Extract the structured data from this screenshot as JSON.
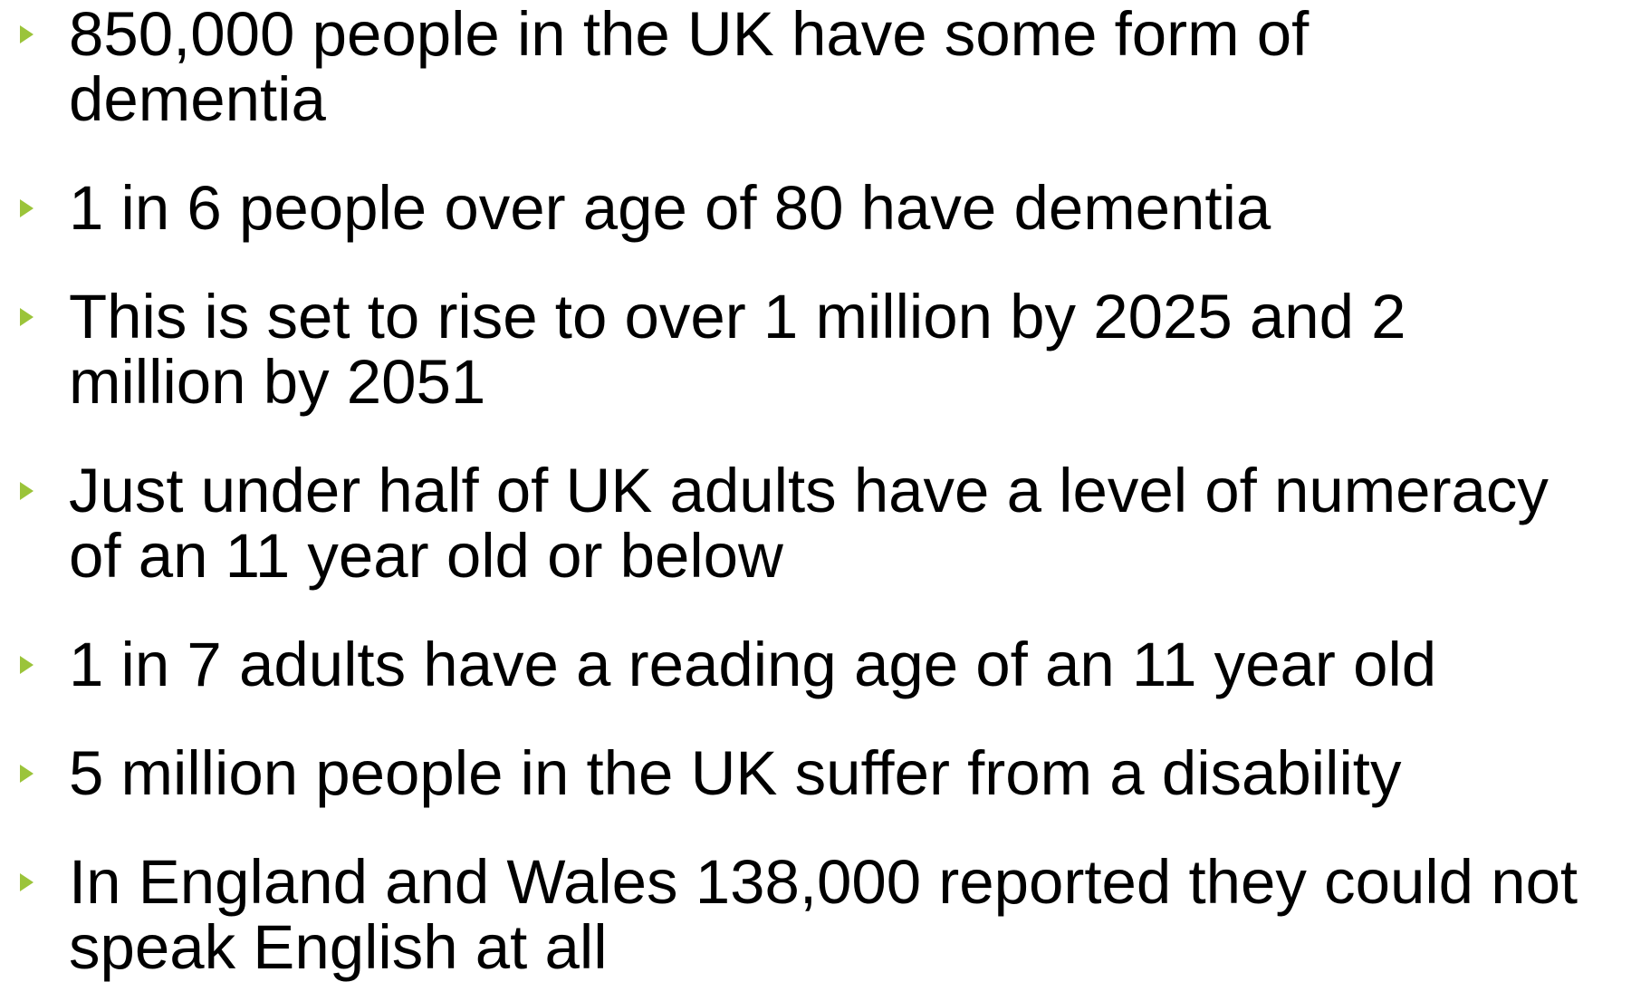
{
  "bullets": [
    {
      "line1": "850,000 people in the UK have some form of",
      "line2": "dementia"
    },
    {
      "line1": "1 in 6 people over age of 80 have dementia",
      "line2": ""
    },
    {
      "line1": "This is set to rise to over 1 million by 2025 and 2",
      "line2": "million by 2051"
    },
    {
      "line1": "Just under half of UK adults have a level of numeracy",
      "line2": "of an 11 year old or below"
    },
    {
      "line1": "1 in 7 adults have a reading age of an 11 year old",
      "line2": ""
    },
    {
      "line1": "5 million people in the UK suffer from a disability",
      "line2": ""
    },
    {
      "line1": "In England and Wales 138,000 reported they could not",
      "line2": "speak English at all"
    }
  ],
  "colors": {
    "bullet": "#9bc43a",
    "text": "#000000",
    "background": "#ffffff"
  },
  "icons": {
    "bullet": "triangle-right-icon"
  }
}
